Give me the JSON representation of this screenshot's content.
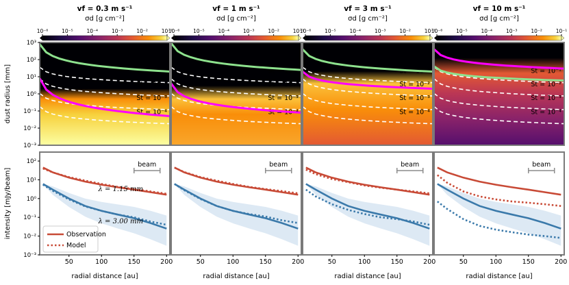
{
  "colors": {
    "observation": "#c84a36",
    "model": "#c84a36",
    "obs_blue": "#3a79aa",
    "beam": "#8c8c8c",
    "st_line": "#ffffff",
    "magenta": "#ff00ff",
    "green": "#8ee28e",
    "frame": "#7a7a7a"
  },
  "colorbar": {
    "label": "σd [g cm⁻²]",
    "ticks": [
      "10⁻⁶",
      "10⁻⁵",
      "10⁻⁴",
      "10⁻³",
      "10⁻²",
      "10⁻¹"
    ],
    "colormap": "inferno"
  },
  "panels": [
    {
      "title": "vf = 0.3 m s⁻¹"
    },
    {
      "title": "vf = 1 m s⁻¹"
    },
    {
      "title": "vf = 3 m s⁻¹"
    },
    {
      "title": "vf = 10 m s⁻¹"
    }
  ],
  "st_labels": [
    "St = 10⁻¹",
    "St = 10⁻²",
    "St = 10⁻³",
    "St = 10⁻⁴"
  ],
  "wavelength_labels": [
    "λ = 1.15 mm",
    "λ = 3.00 mm"
  ],
  "beam_label": "beam",
  "legend": {
    "observation": "Observation",
    "model": "Model"
  },
  "chart_data": [
    {
      "type": "heatmap",
      "ylabel": "dust radius [mm]",
      "yscale": "log",
      "ylim": [
        0.001,
        1000
      ],
      "yticks": [
        "10⁻³",
        "10⁻²",
        "10⁻¹",
        "10⁰",
        "10¹",
        "10²",
        "10³"
      ],
      "xlim": [
        5,
        205
      ]
    },
    {
      "type": "line",
      "xlabel": "radial distance [au]",
      "ylabel": "intensity [mJy/beam]",
      "yscale": "log",
      "ylim": [
        0.001,
        300
      ],
      "xlim": [
        5,
        205
      ],
      "xticks": [
        50,
        100,
        150,
        200
      ],
      "yticks": [
        "10⁻³",
        "10⁻²",
        "10⁻¹",
        "10⁰",
        "10¹",
        "10²"
      ],
      "x": [
        10,
        25,
        50,
        75,
        100,
        125,
        150,
        175,
        200
      ],
      "observation_1.15mm": [
        45,
        25,
        13,
        8,
        5.5,
        4,
        3,
        2.2,
        1.6
      ],
      "observation_3.00mm": [
        6,
        3,
        1,
        0.4,
        0.22,
        0.14,
        0.09,
        0.05,
        0.025
      ],
      "model": [
        {
          "panel": 0,
          "mm1.15": [
            40,
            25,
            14,
            9,
            6,
            4.2,
            3.2,
            2.4,
            1.8
          ],
          "mm3.00": [
            5.5,
            2.6,
            0.9,
            0.38,
            0.22,
            0.14,
            0.1,
            0.06,
            0.04
          ]
        },
        {
          "panel": 1,
          "mm1.15": [
            45,
            26,
            14,
            9,
            6,
            4.2,
            3.2,
            2.5,
            1.9
          ],
          "mm3.00": [
            6,
            2.8,
            0.95,
            0.4,
            0.22,
            0.15,
            0.11,
            0.07,
            0.05
          ]
        },
        {
          "panel": 2,
          "mm1.15": [
            35,
            20,
            11,
            7.5,
            5,
            3.8,
            3,
            2.4,
            1.9
          ],
          "mm3.00": [
            3,
            1.3,
            0.5,
            0.25,
            0.15,
            0.1,
            0.08,
            0.06,
            0.04
          ]
        },
        {
          "panel": 3,
          "mm1.15": [
            18,
            7,
            2.4,
            1.3,
            0.9,
            0.7,
            0.6,
            0.5,
            0.4
          ],
          "mm3.00": [
            0.7,
            0.28,
            0.08,
            0.035,
            0.022,
            0.016,
            0.012,
            0.01,
            0.008
          ]
        }
      ]
    }
  ]
}
